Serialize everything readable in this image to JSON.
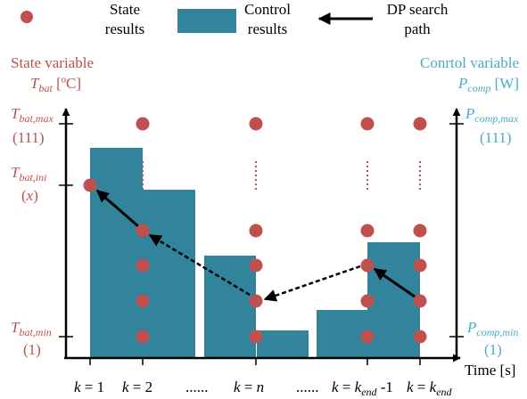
{
  "colors": {
    "state": "#c0504d",
    "control": "#31849b",
    "axis": "#000000",
    "right_axis_text": "#4bacc6"
  },
  "legend": {
    "state_line1": "State",
    "state_line2": "results",
    "control_line1": "Control",
    "control_line2": "results",
    "path_line1": "DP search",
    "path_line2": "path"
  },
  "left_axis": {
    "title": "State variable",
    "var_main": "T",
    "var_sub": "bat",
    "var_unit": " [ºC]",
    "max_main": "T",
    "max_sub": "bat,max",
    "max_index": "(111)",
    "ini_main": "T",
    "ini_sub": "bat,ini",
    "ini_index": "x",
    "min_main": "T",
    "min_sub": "bat,min",
    "min_index": "(1)"
  },
  "right_axis": {
    "title": "Conrtol variable",
    "var_main": "P",
    "var_sub": "comp",
    "var_unit": " [W]",
    "max_main": "P",
    "max_sub": "comp,max",
    "max_index": "(111)",
    "min_main": "P",
    "min_sub": "comp,min",
    "min_index": "(1)"
  },
  "x_axis": {
    "label": "Time [s]",
    "ellipsis": "......",
    "tick_k1": "k = 1",
    "tick_k2": "k = 2",
    "tick_kn_prefix": "k = ",
    "tick_kn_var": "n",
    "tick_kend1_prefix": "k = k",
    "tick_kend1_sub": "end",
    "tick_kend1_suffix": " -1",
    "tick_kend_prefix": "k = k",
    "tick_kend_sub": "end"
  },
  "diagram": {
    "columns": [
      "k = 1",
      "k = 2",
      "k = n",
      "k = kend-1",
      "k = kend"
    ],
    "state_levels": [
      "Tbat,max (111)",
      "Tbat,ini (x)",
      "Tbat,min (1)"
    ],
    "dp_path": [
      "k = kend",
      "k = kend-1",
      "k = n",
      "k = 2",
      "k = 1"
    ]
  }
}
